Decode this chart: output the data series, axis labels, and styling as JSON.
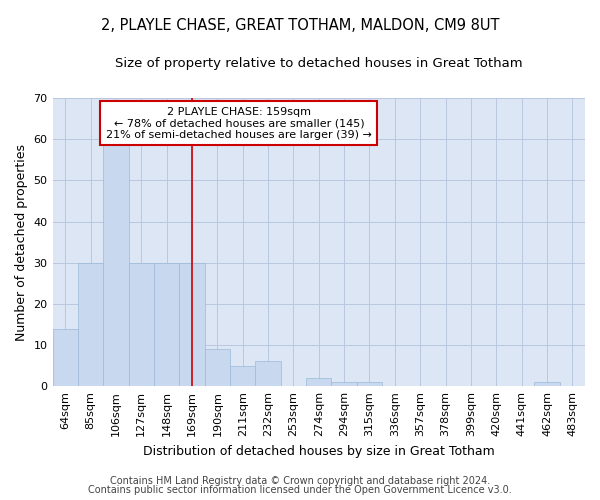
{
  "title1": "2, PLAYLE CHASE, GREAT TOTHAM, MALDON, CM9 8UT",
  "title2": "Size of property relative to detached houses in Great Totham",
  "xlabel": "Distribution of detached houses by size in Great Totham",
  "ylabel": "Number of detached properties",
  "categories": [
    "64sqm",
    "85sqm",
    "106sqm",
    "127sqm",
    "148sqm",
    "169sqm",
    "190sqm",
    "211sqm",
    "232sqm",
    "253sqm",
    "274sqm",
    "294sqm",
    "315sqm",
    "336sqm",
    "357sqm",
    "378sqm",
    "399sqm",
    "420sqm",
    "441sqm",
    "462sqm",
    "483sqm"
  ],
  "values": [
    14,
    30,
    59,
    30,
    30,
    30,
    9,
    5,
    6,
    0,
    2,
    1,
    1,
    0,
    0,
    0,
    0,
    0,
    0,
    1,
    0
  ],
  "bar_color": "#c8d8ef",
  "bar_edge_color": "#9bbad8",
  "vline_x": 5.0,
  "vline_color": "#cc0000",
  "annotation_text": "2 PLAYLE CHASE: 159sqm\n← 78% of detached houses are smaller (145)\n21% of semi-detached houses are larger (39) →",
  "annotation_box_color": "#cc0000",
  "ylim": [
    0,
    70
  ],
  "yticks": [
    0,
    10,
    20,
    30,
    40,
    50,
    60,
    70
  ],
  "footer1": "Contains HM Land Registry data © Crown copyright and database right 2024.",
  "footer2": "Contains public sector information licensed under the Open Government Licence v3.0.",
  "bg_color": "#ffffff",
  "plot_bg_color": "#dce6f5",
  "grid_color": "#b8c8e0",
  "title1_fontsize": 10.5,
  "title2_fontsize": 9.5,
  "axis_label_fontsize": 9,
  "tick_fontsize": 8,
  "annot_fontsize": 8,
  "footer_fontsize": 7
}
